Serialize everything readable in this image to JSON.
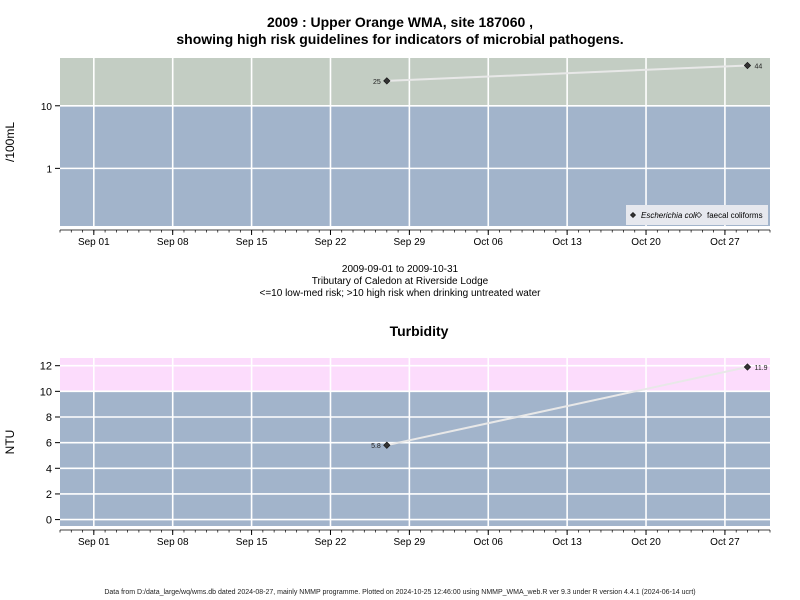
{
  "header": {
    "title_line1": "2009 : Upper Orange WMA, site 187060 ,",
    "title_line2": "showing high risk guidelines for indicators of microbial pathogens."
  },
  "chart_data": [
    {
      "type": "scatter",
      "title": "",
      "ylabel": "/100mL",
      "yscale": "log",
      "ytick_labels": [
        "1",
        "10"
      ],
      "xtick_labels": [
        "Sep 01",
        "Sep 08",
        "Sep 15",
        "Sep 22",
        "Sep 29",
        "Oct 06",
        "Oct 13",
        "Oct 20",
        "Oct 27"
      ],
      "xlim": [
        "2009-08-29",
        "2009-10-31"
      ],
      "ylim": [
        0.12,
        58
      ],
      "grid": true,
      "threshold": {
        "value": 10,
        "below_color": "#a2b4cb",
        "above_color": "#c3cdc3"
      },
      "series": [
        {
          "name": "Escherichia coli",
          "marker": "filled-diamond",
          "color": "#333333",
          "points": [
            {
              "x": "2009-09-27",
              "y": 25,
              "label": "25"
            },
            {
              "x": "2009-10-29",
              "y": 44,
              "label": "44"
            }
          ]
        },
        {
          "name": "faecal coliforms",
          "marker": "open-diamond",
          "color": "#333333",
          "points": []
        }
      ],
      "legend_position": "bottom-right"
    },
    {
      "type": "scatter",
      "title": "Turbidity",
      "ylabel": "NTU",
      "xtick_labels": [
        "Sep 01",
        "Sep 08",
        "Sep 15",
        "Sep 22",
        "Sep 29",
        "Oct 06",
        "Oct 13",
        "Oct 20",
        "Oct 27"
      ],
      "ytick_labels": [
        "0",
        "2",
        "4",
        "6",
        "8",
        "10",
        "12"
      ],
      "xlim": [
        "2009-08-29",
        "2009-10-31"
      ],
      "ylim": [
        -0.5,
        12.6
      ],
      "grid": true,
      "threshold": {
        "value": 10,
        "below_color": "#a2b4cb",
        "above_color": "#fcdcfc"
      },
      "series": [
        {
          "name": "",
          "marker": "filled-diamond",
          "color": "#333333",
          "points": [
            {
              "x": "2009-09-27",
              "y": 5.8,
              "label": "5.8"
            },
            {
              "x": "2009-10-29",
              "y": 11.9,
              "label": "11.9"
            }
          ]
        }
      ]
    }
  ],
  "info": {
    "date_range": "2009-09-01 to 2009-10-31",
    "location": "Tributary of Caledon at Riverside Lodge",
    "risk_note": "<=10 low-med risk; >10 high risk when drinking untreated water"
  },
  "footer": "Data from D:/data_large/wq/wms.db dated 2024-08-27, mainly NMMP programme. Plotted on 2024-10-25 12:46:00 using NMMP_WMA_web.R ver 9.3 under R version 4.4.1 (2024-06-14 ucrt)"
}
